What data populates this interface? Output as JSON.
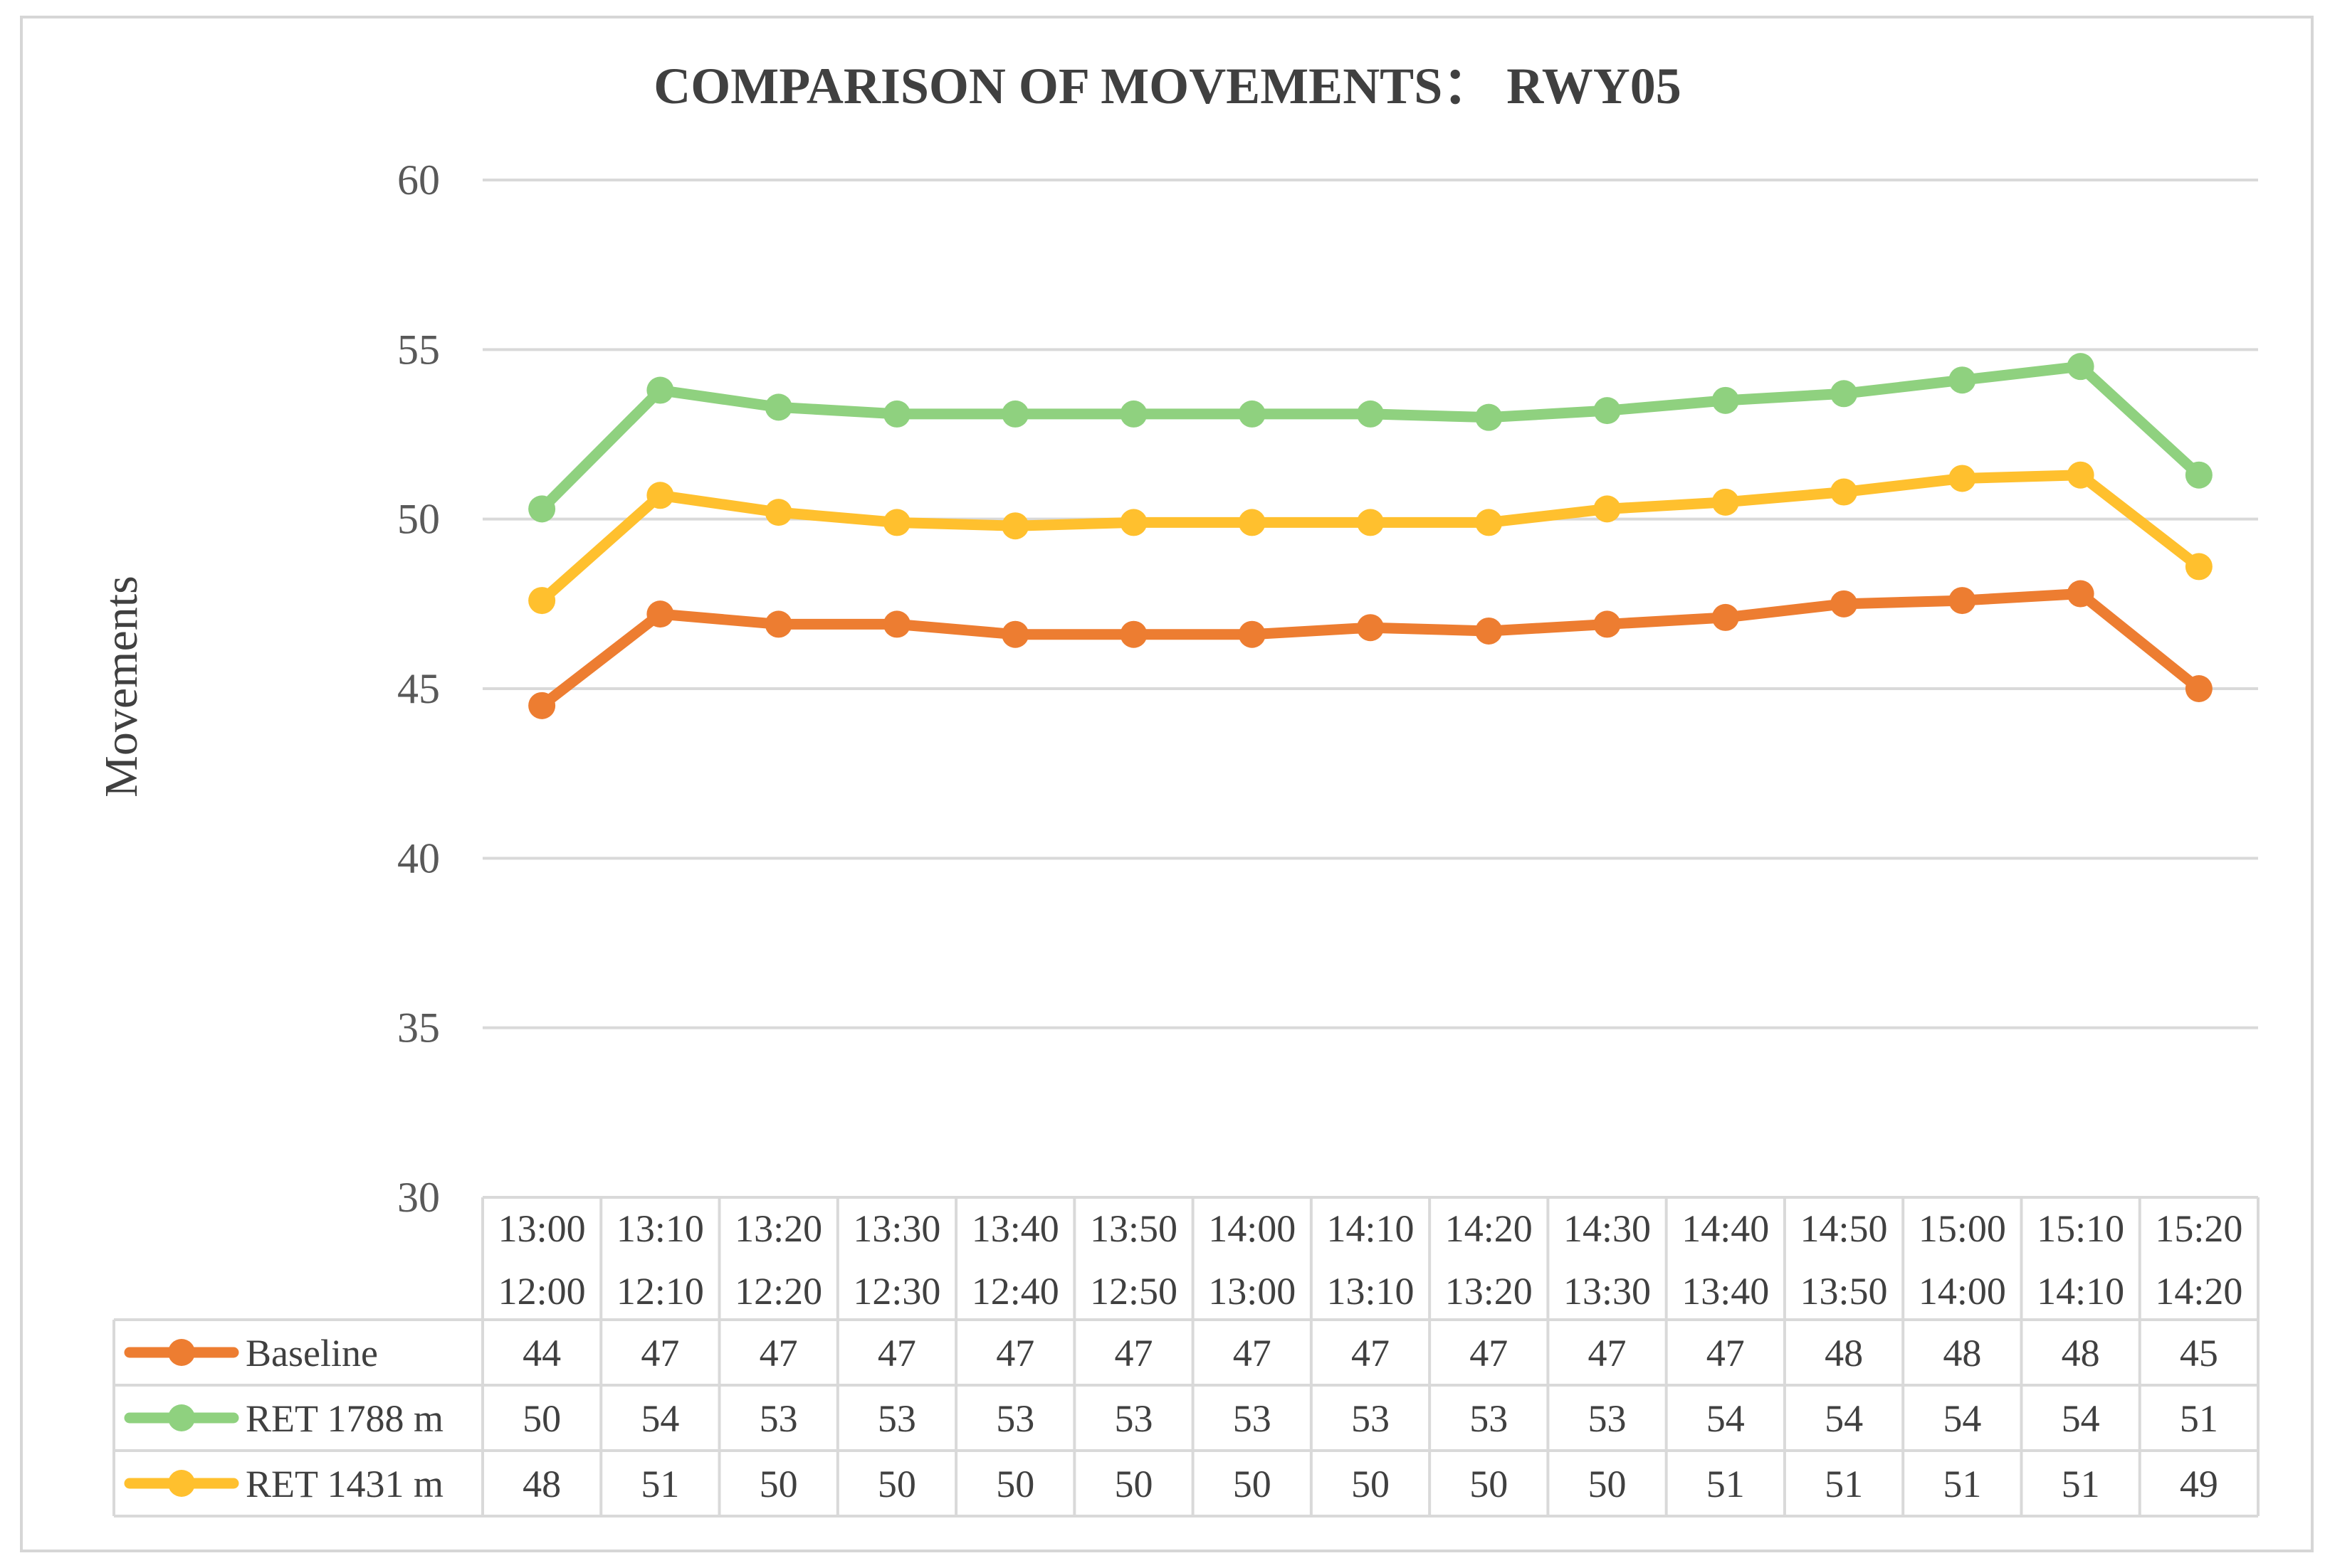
{
  "chart_data": {
    "type": "line",
    "title": "COMPARISON OF MOVEMENTS： RWY05",
    "xlabel": "",
    "ylabel": "Movements",
    "ylim": [
      30,
      60
    ],
    "yticks": [
      30,
      35,
      40,
      45,
      50,
      55,
      60
    ],
    "grid": true,
    "legend": "data-table-left",
    "categories": [
      [
        "13:00",
        "12:00"
      ],
      [
        "13:10",
        "12:10"
      ],
      [
        "13:20",
        "12:20"
      ],
      [
        "13:30",
        "12:30"
      ],
      [
        "13:40",
        "12:40"
      ],
      [
        "13:50",
        "12:50"
      ],
      [
        "14:00",
        "13:00"
      ],
      [
        "14:10",
        "13:10"
      ],
      [
        "14:20",
        "13:20"
      ],
      [
        "14:30",
        "13:30"
      ],
      [
        "14:40",
        "13:40"
      ],
      [
        "14:50",
        "13:50"
      ],
      [
        "15:00",
        "14:00"
      ],
      [
        "15:10",
        "14:10"
      ],
      [
        "15:20",
        "14:20"
      ]
    ],
    "series": [
      {
        "name": "Baseline",
        "color": "#ED7D31",
        "values": [
          44.5,
          47.2,
          46.9,
          46.9,
          46.6,
          46.6,
          46.6,
          46.8,
          46.7,
          46.9,
          47.1,
          47.5,
          47.6,
          47.8,
          45.0
        ],
        "table_values": [
          "44",
          "47",
          "47",
          "47",
          "47",
          "47",
          "47",
          "47",
          "47",
          "47",
          "47",
          "48",
          "48",
          "48",
          "45"
        ]
      },
      {
        "name": "RET 1788 m",
        "color": "#8FD17F",
        "values": [
          50.3,
          53.8,
          53.3,
          53.1,
          53.1,
          53.1,
          53.1,
          53.1,
          53.0,
          53.2,
          53.5,
          53.7,
          54.1,
          54.5,
          51.3
        ],
        "table_values": [
          "50",
          "54",
          "53",
          "53",
          "53",
          "53",
          "53",
          "53",
          "53",
          "53",
          "54",
          "54",
          "54",
          "54",
          "51"
        ]
      },
      {
        "name": "RET 1431 m",
        "color": "#FFC02E",
        "values": [
          47.6,
          50.7,
          50.2,
          49.9,
          49.8,
          49.9,
          49.9,
          49.9,
          49.9,
          50.3,
          50.5,
          50.8,
          51.2,
          51.3,
          48.6
        ],
        "table_values": [
          "48",
          "51",
          "50",
          "50",
          "50",
          "50",
          "50",
          "50",
          "50",
          "50",
          "51",
          "51",
          "51",
          "51",
          "49"
        ]
      }
    ]
  }
}
